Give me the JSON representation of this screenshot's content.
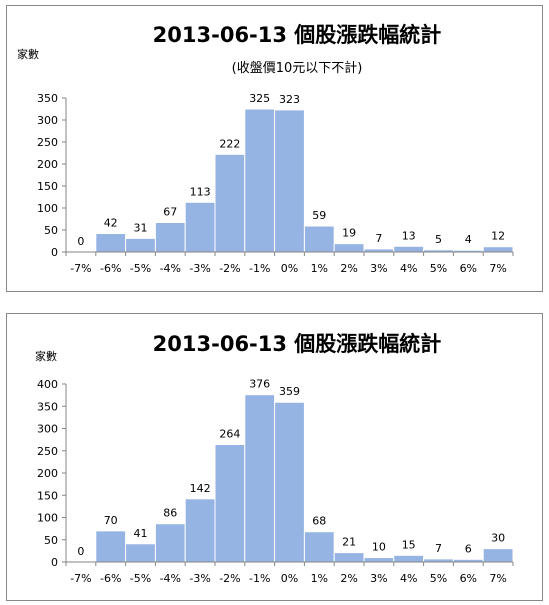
{
  "colors": {
    "bar": "#95b3e3",
    "bar_edge": "#ffffff",
    "axis": "#868686",
    "text": "#000000"
  },
  "chart_data": [
    {
      "type": "bar",
      "title": "2013-06-13 個股漲跌幅統計",
      "subtitle": "(收盤價10元以下不計)",
      "ylabel": "家數",
      "xlabel": "",
      "categories": [
        "-7%",
        "-6%",
        "-5%",
        "-4%",
        "-3%",
        "-2%",
        "-1%",
        "0%",
        "1%",
        "2%",
        "3%",
        "4%",
        "5%",
        "6%",
        "7%"
      ],
      "values": [
        0,
        42,
        31,
        67,
        113,
        222,
        325,
        323,
        59,
        19,
        7,
        13,
        5,
        4,
        12
      ],
      "ylim": [
        0,
        350
      ],
      "yticks": [
        0,
        50,
        100,
        150,
        200,
        250,
        300,
        350
      ],
      "grid": false,
      "legend": "none"
    },
    {
      "type": "bar",
      "title": "2013-06-13 個股漲跌幅統計",
      "ylabel": "家數",
      "xlabel": "",
      "categories": [
        "-7%",
        "-6%",
        "-5%",
        "-4%",
        "-3%",
        "-2%",
        "-1%",
        "0%",
        "1%",
        "2%",
        "3%",
        "4%",
        "5%",
        "6%",
        "7%"
      ],
      "values": [
        0,
        70,
        41,
        86,
        142,
        264,
        376,
        359,
        68,
        21,
        10,
        15,
        7,
        6,
        30
      ],
      "ylim": [
        0,
        400
      ],
      "yticks": [
        0,
        50,
        100,
        150,
        200,
        250,
        300,
        350,
        400
      ],
      "grid": false,
      "legend": "none"
    }
  ]
}
